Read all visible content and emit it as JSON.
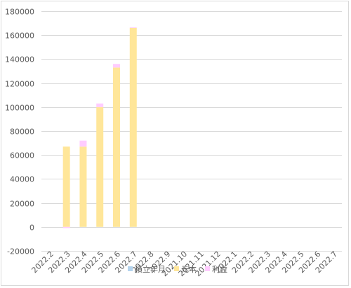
{
  "chart_data": {
    "type": "bar",
    "stacked": true,
    "categories": [
      "2022.2",
      "2022.3",
      "2022.4",
      "2022.5",
      "2022.6",
      "2022.7",
      "2022.8",
      "2022.9",
      "2021.10",
      "2021.11",
      "2021.12",
      "2022.1",
      "2022.2",
      "2022.3",
      "2022.4",
      "2022.5",
      "2022.6",
      "2022.7"
    ],
    "series": [
      {
        "name": "積立年月",
        "color": "#b4d4ee",
        "values": [
          0,
          0,
          0,
          0,
          0,
          0,
          0,
          0,
          0,
          0,
          0,
          0,
          0,
          0,
          0,
          0,
          0,
          0
        ]
      },
      {
        "name": "元本",
        "color": "#ffe699",
        "values": [
          0,
          67000,
          67000,
          100000,
          133000,
          166000,
          0,
          0,
          0,
          0,
          0,
          0,
          0,
          0,
          0,
          0,
          0,
          0
        ]
      },
      {
        "name": "利益",
        "color": "#ffccff",
        "values": [
          0,
          -1000,
          5000,
          3000,
          3000,
          500,
          0,
          0,
          0,
          0,
          0,
          0,
          0,
          0,
          0,
          0,
          0,
          0
        ]
      }
    ],
    "ylim": [
      -20000,
      180000
    ],
    "yticks": [
      -20000,
      0,
      20000,
      40000,
      60000,
      80000,
      100000,
      120000,
      140000,
      160000,
      180000
    ],
    "title": "",
    "xlabel": "",
    "ylabel": "",
    "grid": true,
    "legend": "bottom"
  }
}
